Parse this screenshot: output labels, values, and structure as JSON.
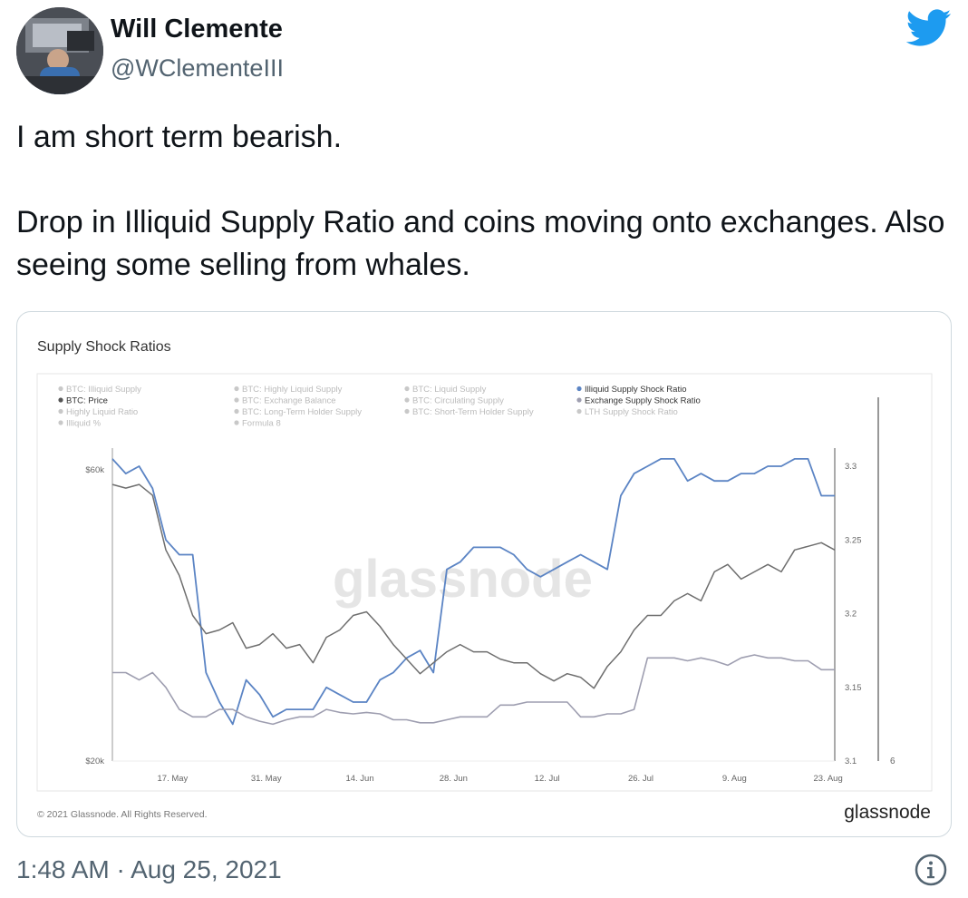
{
  "author": {
    "display_name": "Will Clemente",
    "handle": "@WClementeIII"
  },
  "icons": {
    "platform": "twitter-bird-icon",
    "info": "info-icon",
    "platform_color": "#1d9bf0"
  },
  "tweet": {
    "line1": "I am short term bearish.",
    "line2": "Drop in Illiquid Supply Ratio and coins moving onto exchanges. Also seeing some selling from whales."
  },
  "meta": {
    "time": "1:48 AM",
    "separator": "·",
    "date": "Aug 25, 2021"
  },
  "chart": {
    "title": "Supply Shock Ratios",
    "watermark": "glassnode",
    "copyright": "© 2021 Glassnode. All Rights Reserved.",
    "brand": "glassnode",
    "legend": [
      [
        "BTC: Illiquid Supply",
        "BTC: Highly Liquid Supply",
        "BTC: Liquid Supply",
        "Illiquid Supply Shock Ratio"
      ],
      [
        "BTC: Price",
        "BTC: Exchange Balance",
        "BTC: Circulating Supply",
        "Exchange Supply Shock Ratio"
      ],
      [
        "Highly Liquid Ratio",
        "BTC: Long-Term Holder Supply",
        "BTC: Short-Term Holder Supply",
        "LTH Supply Shock Ratio"
      ],
      [
        "Illiquid %",
        "Formula 8",
        "",
        ""
      ]
    ],
    "left_ticks": [
      "$60k",
      "$20k"
    ],
    "right_ticks": [
      "3.3",
      "3.25",
      "3.2",
      "3.15",
      "3.1"
    ],
    "far_right_tick": "6",
    "x_ticks": [
      "17. May",
      "31. May",
      "14. Jun",
      "28. Jun",
      "12. Jul",
      "26. Jul",
      "9. Aug",
      "23. Aug"
    ]
  },
  "chart_data": {
    "type": "line",
    "title": "Supply Shock Ratios",
    "x_labels": [
      "17. May",
      "31. May",
      "14. Jun",
      "28. Jun",
      "12. Jul",
      "26. Jul",
      "9. Aug",
      "23. Aug"
    ],
    "x_range": [
      "2021-05-08",
      "2021-08-24"
    ],
    "left_axis": {
      "ticks": [
        "$20k",
        "$60k"
      ],
      "ylim": [
        20000,
        60000
      ]
    },
    "right_axis": {
      "ticks": [
        3.1,
        3.15,
        3.2,
        3.25,
        3.3
      ],
      "ylim": [
        3.1,
        3.3
      ]
    },
    "colors": {
      "illiquid": "#5b84c4",
      "price": "#6e6e6e",
      "exchange": "#9e9eb0"
    },
    "series": [
      {
        "name": "Illiquid Supply Shock Ratio",
        "axis": "right",
        "x": [
          "2021-05-08",
          "2021-05-10",
          "2021-05-12",
          "2021-05-14",
          "2021-05-16",
          "2021-05-18",
          "2021-05-20",
          "2021-05-22",
          "2021-05-24",
          "2021-05-26",
          "2021-05-28",
          "2021-05-30",
          "2021-06-01",
          "2021-06-03",
          "2021-06-05",
          "2021-06-07",
          "2021-06-09",
          "2021-06-11",
          "2021-06-13",
          "2021-06-15",
          "2021-06-17",
          "2021-06-19",
          "2021-06-21",
          "2021-06-23",
          "2021-06-25",
          "2021-06-27",
          "2021-06-29",
          "2021-07-01",
          "2021-07-03",
          "2021-07-05",
          "2021-07-07",
          "2021-07-09",
          "2021-07-11",
          "2021-07-13",
          "2021-07-15",
          "2021-07-17",
          "2021-07-19",
          "2021-07-21",
          "2021-07-23",
          "2021-07-25",
          "2021-07-27",
          "2021-07-29",
          "2021-07-31",
          "2021-08-02",
          "2021-08-04",
          "2021-08-06",
          "2021-08-08",
          "2021-08-10",
          "2021-08-12",
          "2021-08-14",
          "2021-08-16",
          "2021-08-18",
          "2021-08-20",
          "2021-08-22",
          "2021-08-24"
        ],
        "y": [
          3.305,
          3.295,
          3.3,
          3.285,
          3.25,
          3.24,
          3.24,
          3.16,
          3.14,
          3.125,
          3.155,
          3.145,
          3.13,
          3.135,
          3.135,
          3.135,
          3.15,
          3.145,
          3.14,
          3.14,
          3.155,
          3.16,
          3.17,
          3.175,
          3.16,
          3.23,
          3.235,
          3.245,
          3.245,
          3.245,
          3.24,
          3.23,
          3.225,
          3.23,
          3.235,
          3.24,
          3.235,
          3.23,
          3.28,
          3.295,
          3.3,
          3.305,
          3.305,
          3.29,
          3.295,
          3.29,
          3.29,
          3.295,
          3.295,
          3.3,
          3.3,
          3.305,
          3.305,
          3.28,
          3.28
        ]
      },
      {
        "name": "BTC: Price",
        "axis": "left",
        "x": [
          "2021-05-08",
          "2021-05-10",
          "2021-05-12",
          "2021-05-14",
          "2021-05-16",
          "2021-05-18",
          "2021-05-20",
          "2021-05-22",
          "2021-05-24",
          "2021-05-26",
          "2021-05-28",
          "2021-05-30",
          "2021-06-01",
          "2021-06-03",
          "2021-06-05",
          "2021-06-07",
          "2021-06-09",
          "2021-06-11",
          "2021-06-13",
          "2021-06-15",
          "2021-06-17",
          "2021-06-19",
          "2021-06-21",
          "2021-06-23",
          "2021-06-25",
          "2021-06-27",
          "2021-06-29",
          "2021-07-01",
          "2021-07-03",
          "2021-07-05",
          "2021-07-07",
          "2021-07-09",
          "2021-07-11",
          "2021-07-13",
          "2021-07-15",
          "2021-07-17",
          "2021-07-19",
          "2021-07-21",
          "2021-07-23",
          "2021-07-25",
          "2021-07-27",
          "2021-07-29",
          "2021-07-31",
          "2021-08-02",
          "2021-08-04",
          "2021-08-06",
          "2021-08-08",
          "2021-08-10",
          "2021-08-12",
          "2021-08-14",
          "2021-08-16",
          "2021-08-18",
          "2021-08-20",
          "2021-08-22",
          "2021-08-24"
        ],
        "y": [
          58000,
          57500,
          58000,
          56500,
          49000,
          45500,
          40000,
          37500,
          38000,
          39000,
          35500,
          36000,
          37500,
          35500,
          36000,
          33500,
          37000,
          38000,
          40000,
          40500,
          38500,
          36000,
          34000,
          32000,
          33500,
          35000,
          36000,
          35000,
          35000,
          34000,
          33500,
          33500,
          32000,
          31000,
          32000,
          31500,
          30000,
          33000,
          35000,
          38000,
          40000,
          40000,
          42000,
          43000,
          42000,
          46000,
          47000,
          45000,
          46000,
          47000,
          46000,
          49000,
          49500,
          50000,
          49000
        ]
      },
      {
        "name": "Exchange Supply Shock Ratio",
        "axis": "right",
        "x": [
          "2021-05-08",
          "2021-05-10",
          "2021-05-12",
          "2021-05-14",
          "2021-05-16",
          "2021-05-18",
          "2021-05-20",
          "2021-05-22",
          "2021-05-24",
          "2021-05-26",
          "2021-05-28",
          "2021-05-30",
          "2021-06-01",
          "2021-06-03",
          "2021-06-05",
          "2021-06-07",
          "2021-06-09",
          "2021-06-11",
          "2021-06-13",
          "2021-06-15",
          "2021-06-17",
          "2021-06-19",
          "2021-06-21",
          "2021-06-23",
          "2021-06-25",
          "2021-06-27",
          "2021-06-29",
          "2021-07-01",
          "2021-07-03",
          "2021-07-05",
          "2021-07-07",
          "2021-07-09",
          "2021-07-11",
          "2021-07-13",
          "2021-07-15",
          "2021-07-17",
          "2021-07-19",
          "2021-07-21",
          "2021-07-23",
          "2021-07-25",
          "2021-07-27",
          "2021-07-29",
          "2021-07-31",
          "2021-08-02",
          "2021-08-04",
          "2021-08-06",
          "2021-08-08",
          "2021-08-10",
          "2021-08-12",
          "2021-08-14",
          "2021-08-16",
          "2021-08-18",
          "2021-08-20",
          "2021-08-22",
          "2021-08-24"
        ],
        "y": [
          3.16,
          3.16,
          3.155,
          3.16,
          3.15,
          3.135,
          3.13,
          3.13,
          3.135,
          3.135,
          3.13,
          3.127,
          3.125,
          3.128,
          3.13,
          3.13,
          3.135,
          3.133,
          3.132,
          3.133,
          3.132,
          3.128,
          3.128,
          3.126,
          3.126,
          3.128,
          3.13,
          3.13,
          3.13,
          3.138,
          3.138,
          3.14,
          3.14,
          3.14,
          3.14,
          3.13,
          3.13,
          3.132,
          3.132,
          3.135,
          3.17,
          3.17,
          3.17,
          3.168,
          3.17,
          3.168,
          3.165,
          3.17,
          3.172,
          3.17,
          3.17,
          3.168,
          3.168,
          3.162,
          3.162
        ]
      }
    ]
  }
}
